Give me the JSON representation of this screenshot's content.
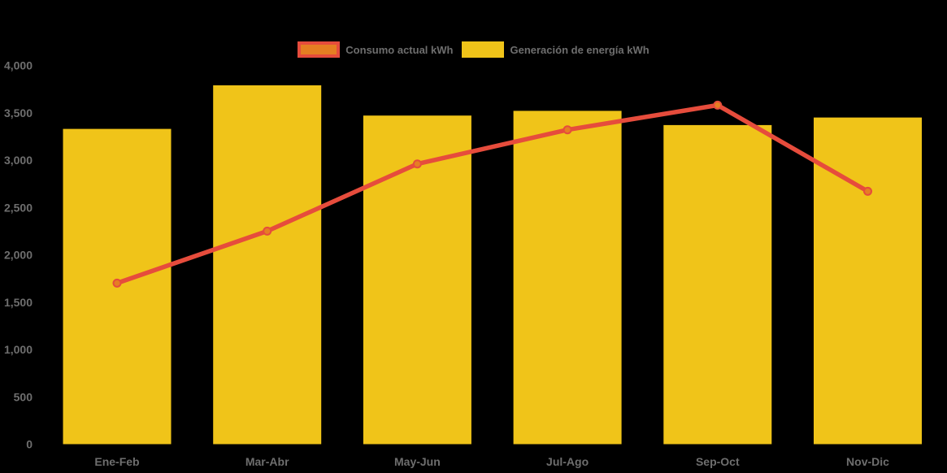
{
  "chart_data": {
    "type": "combo",
    "title": "",
    "categories": [
      "Ene-Feb",
      "Mar-Abr",
      "May-Jun",
      "Jul-Ago",
      "Sep-Oct",
      "Nov-Dic"
    ],
    "series": [
      {
        "name": "Consumo actual kWh",
        "type": "line",
        "values": [
          1700,
          2250,
          2960,
          3320,
          3580,
          2670
        ],
        "color": "#E64C3C",
        "marker_color": "#E67E22"
      },
      {
        "name": "Generación de energía kWh",
        "type": "bar",
        "values": [
          3330,
          3790,
          3470,
          3520,
          3370,
          3450
        ],
        "color": "#F0C419"
      }
    ],
    "xlabel": "",
    "ylabel": "",
    "ylim": [
      0,
      4000
    ],
    "yticks": [
      0,
      500,
      1000,
      1500,
      2000,
      2500,
      3000,
      3500,
      4000
    ],
    "ytick_labels": [
      "0",
      "500",
      "1,000",
      "1,500",
      "2,000",
      "2,500",
      "3,000",
      "3,500",
      "4,000"
    ],
    "grid": false,
    "legend_position": "top",
    "background_color": "#000000",
    "text_color": "#6E6E6E"
  }
}
